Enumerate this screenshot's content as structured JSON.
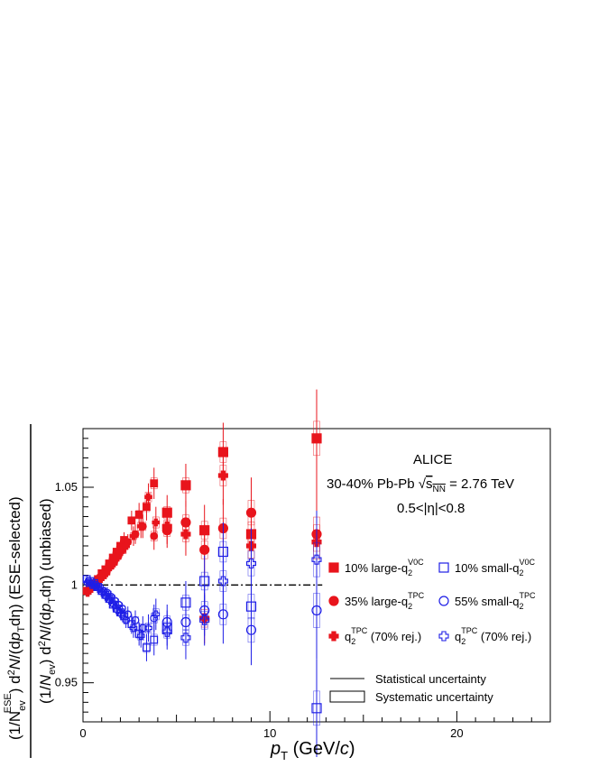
{
  "chart_data": {
    "type": "scatter",
    "xlabel": "p_T (GeV/c)",
    "ylabel_numerator": "(1/N_ev^ESE) d²N/(dp_T dη) (ESE-selected)",
    "ylabel_denominator": "(1/N_ev) d²N/(dp_T dη) (unbiased)",
    "xlim": [
      0,
      25
    ],
    "ylim": [
      0.93,
      1.08
    ],
    "x_ticks": [
      0,
      10,
      20
    ],
    "y_ticks": [
      0.95,
      1,
      1.05
    ],
    "x_tick_labels": [
      "0",
      "10",
      "20"
    ],
    "y_tick_labels": [
      "0.95",
      "1",
      "1.05"
    ],
    "reference_line": 1.0,
    "annotations": {
      "experiment": "ALICE",
      "system": "30-40% Pb-Pb √s_NN = 2.76 TeV",
      "eta": "0.5<|η|<0.8"
    },
    "legend_position": "right",
    "series": [
      {
        "name": "10% large-q2V0C",
        "color": "#e8141c",
        "marker": "square",
        "filled": true,
        "x": [
          0.2,
          0.4,
          0.6,
          0.8,
          1.0,
          1.2,
          1.4,
          1.6,
          1.8,
          2.0,
          2.2,
          2.6,
          3.0,
          3.4,
          3.8,
          4.5,
          5.5,
          6.5,
          7.5,
          9.0,
          12.5
        ],
        "y": [
          0.997,
          0.999,
          1.001,
          1.003,
          1.006,
          1.008,
          1.011,
          1.014,
          1.017,
          1.02,
          1.023,
          1.033,
          1.036,
          1.04,
          1.052,
          1.037,
          1.051,
          1.028,
          1.068,
          1.026,
          1.075
        ],
        "err": [
          0.002,
          0.002,
          0.002,
          0.002,
          0.002,
          0.003,
          0.003,
          0.003,
          0.003,
          0.003,
          0.004,
          0.005,
          0.006,
          0.007,
          0.008,
          0.009,
          0.011,
          0.013,
          0.015,
          0.018,
          0.025
        ]
      },
      {
        "name": "35% large-q2TPC",
        "color": "#e8141c",
        "marker": "circle",
        "filled": true,
        "x": [
          0.3,
          0.5,
          0.7,
          0.9,
          1.1,
          1.3,
          1.5,
          1.7,
          1.9,
          2.1,
          2.4,
          2.8,
          3.2,
          3.8,
          4.5,
          5.5,
          6.5,
          7.5,
          9.0,
          12.5
        ],
        "y": [
          0.998,
          1.0,
          1.002,
          1.004,
          1.006,
          1.008,
          1.011,
          1.013,
          1.015,
          1.018,
          1.022,
          1.026,
          1.03,
          1.025,
          1.028,
          1.032,
          1.018,
          1.029,
          1.037,
          1.026
        ],
        "err": [
          0.002,
          0.002,
          0.002,
          0.002,
          0.002,
          0.003,
          0.003,
          0.003,
          0.003,
          0.003,
          0.004,
          0.005,
          0.006,
          0.007,
          0.009,
          0.011,
          0.013,
          0.015,
          0.018,
          0.025
        ]
      },
      {
        "name": "q2TPC (70% rej.)",
        "color": "#e8141c",
        "marker": "cross",
        "filled": true,
        "x": [
          0.25,
          0.45,
          0.65,
          0.85,
          1.05,
          1.25,
          1.45,
          1.65,
          1.85,
          2.05,
          2.3,
          2.7,
          3.1,
          3.5,
          3.9,
          4.5,
          5.5,
          6.5,
          7.5,
          9.0,
          12.5
        ],
        "y": [
          0.996,
          0.998,
          1.0,
          1.002,
          1.004,
          1.006,
          1.009,
          1.011,
          1.014,
          1.017,
          1.02,
          1.025,
          1.03,
          1.045,
          1.032,
          1.03,
          1.026,
          0.983,
          1.056,
          1.02,
          1.022
        ],
        "err": [
          0.002,
          0.002,
          0.002,
          0.002,
          0.002,
          0.003,
          0.003,
          0.003,
          0.003,
          0.003,
          0.004,
          0.005,
          0.006,
          0.007,
          0.008,
          0.009,
          0.011,
          0.013,
          0.015,
          0.018,
          0.025
        ]
      },
      {
        "name": "10% small-q2V0C",
        "color": "#1e1ee6",
        "marker": "square",
        "filled": false,
        "x": [
          0.2,
          0.4,
          0.6,
          0.8,
          1.0,
          1.2,
          1.4,
          1.6,
          1.8,
          2.0,
          2.2,
          2.6,
          3.0,
          3.4,
          3.8,
          4.5,
          5.5,
          6.5,
          7.5,
          9.0,
          12.5
        ],
        "y": [
          1.003,
          1.002,
          1.001,
          0.999,
          0.997,
          0.995,
          0.993,
          0.99,
          0.988,
          0.986,
          0.984,
          0.98,
          0.975,
          0.968,
          0.972,
          0.978,
          0.991,
          1.002,
          1.017,
          0.989,
          0.937
        ],
        "err": [
          0.002,
          0.002,
          0.002,
          0.002,
          0.002,
          0.003,
          0.003,
          0.003,
          0.003,
          0.003,
          0.004,
          0.005,
          0.006,
          0.007,
          0.008,
          0.009,
          0.011,
          0.013,
          0.015,
          0.018,
          0.025
        ]
      },
      {
        "name": "55% small-q2TPC",
        "color": "#1e1ee6",
        "marker": "circle",
        "filled": false,
        "x": [
          0.3,
          0.5,
          0.7,
          0.9,
          1.1,
          1.3,
          1.5,
          1.7,
          1.9,
          2.1,
          2.4,
          2.8,
          3.2,
          3.8,
          4.5,
          5.5,
          6.5,
          7.5,
          9.0,
          12.5
        ],
        "y": [
          1.002,
          1.001,
          1.0,
          0.999,
          0.997,
          0.996,
          0.994,
          0.992,
          0.99,
          0.988,
          0.985,
          0.982,
          0.978,
          0.983,
          0.981,
          0.981,
          0.987,
          0.985,
          0.977,
          0.987
        ],
        "err": [
          0.002,
          0.002,
          0.002,
          0.002,
          0.002,
          0.003,
          0.003,
          0.003,
          0.003,
          0.003,
          0.004,
          0.005,
          0.006,
          0.007,
          0.009,
          0.011,
          0.013,
          0.015,
          0.018,
          0.025
        ]
      },
      {
        "name": "q2TPC (70% rej.)",
        "color": "#1e1ee6",
        "marker": "cross",
        "filled": false,
        "x": [
          0.25,
          0.45,
          0.65,
          0.85,
          1.05,
          1.25,
          1.45,
          1.65,
          1.85,
          2.05,
          2.3,
          2.7,
          3.1,
          3.5,
          3.9,
          4.5,
          5.5,
          6.5,
          7.5,
          9.0,
          12.5
        ],
        "y": [
          1.001,
          1.0,
          0.999,
          0.998,
          0.996,
          0.994,
          0.992,
          0.99,
          0.987,
          0.985,
          0.982,
          0.978,
          0.974,
          0.978,
          0.985,
          0.976,
          0.973,
          0.982,
          1.002,
          1.011,
          1.013
        ],
        "err": [
          0.002,
          0.002,
          0.002,
          0.002,
          0.002,
          0.003,
          0.003,
          0.003,
          0.003,
          0.003,
          0.004,
          0.005,
          0.006,
          0.007,
          0.008,
          0.009,
          0.011,
          0.013,
          0.015,
          0.018,
          0.025
        ]
      }
    ],
    "legend": {
      "items": [
        {
          "prefix": "10% large-q",
          "sub": "2",
          "sup": "V0C",
          "suffix": "",
          "color": "#e8141c",
          "marker": "square",
          "filled": true
        },
        {
          "prefix": "10% small-q",
          "sub": "2",
          "sup": "V0C",
          "suffix": "",
          "color": "#1e1ee6",
          "marker": "square",
          "filled": false
        },
        {
          "prefix": "35% large-q",
          "sub": "2",
          "sup": "TPC",
          "suffix": "",
          "color": "#e8141c",
          "marker": "circle",
          "filled": true
        },
        {
          "prefix": "55% small-q",
          "sub": "2",
          "sup": "TPC",
          "suffix": "",
          "color": "#1e1ee6",
          "marker": "circle",
          "filled": false
        },
        {
          "prefix": "q",
          "sub": "2",
          "sup": "TPC",
          "suffix": " (70% rej.)",
          "color": "#e8141c",
          "marker": "cross",
          "filled": true
        },
        {
          "prefix": "q",
          "sub": "2",
          "sup": "TPC",
          "suffix": " (70% rej.)",
          "color": "#1e1ee6",
          "marker": "cross",
          "filled": false
        }
      ],
      "stat_label": "Statistical uncertainty",
      "syst_label": "Systematic uncertainty"
    }
  }
}
